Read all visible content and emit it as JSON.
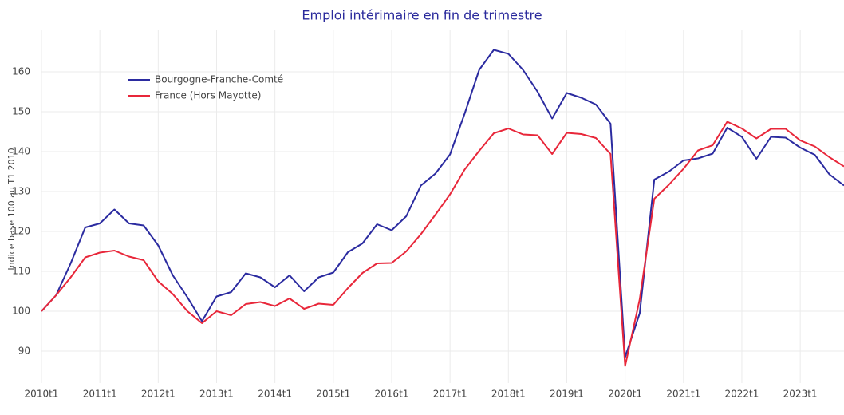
{
  "chart_data": {
    "type": "line",
    "title": "Emploi intérimaire en fin de trimestre",
    "ylabel": "Indice base 100 au T1 2010",
    "categories": [
      "2010t1",
      null,
      null,
      null,
      "2011t1",
      null,
      null,
      null,
      "2012t1",
      null,
      null,
      null,
      "2013t1",
      null,
      null,
      null,
      "2014t1",
      null,
      null,
      null,
      "2015t1",
      null,
      null,
      null,
      "2016t1",
      null,
      null,
      null,
      "2017t1",
      null,
      null,
      null,
      "2018t1",
      null,
      null,
      null,
      "2019t1",
      null,
      null,
      null,
      "2020t1",
      null,
      null,
      null,
      "2021t1",
      null,
      null,
      null,
      "2022t1",
      null,
      null,
      null,
      "2023t1",
      null,
      null,
      null
    ],
    "series": [
      {
        "name": "Bourgogne-Franche-Comté",
        "color": "#2b2ba0",
        "values": [
          100,
          104,
          112,
          121,
          122,
          125.5,
          122,
          121.5,
          116.5,
          109,
          103.5,
          97.5,
          103.7,
          104.8,
          109.5,
          108.5,
          106,
          109,
          105,
          108.5,
          109.7,
          114.8,
          117,
          121.8,
          120.3,
          123.8,
          131.5,
          134.5,
          139.3,
          149.5,
          160.5,
          165.5,
          164.5,
          160.5,
          155,
          148.3,
          154.7,
          153.5,
          151.8,
          147,
          88.5,
          99.5,
          133,
          135,
          137.8,
          138.3,
          139.5,
          146,
          143.7,
          138.2,
          143.7,
          143.5,
          141,
          139.2,
          134.3,
          131.5
        ]
      },
      {
        "name": "France (Hors Mayotte)",
        "color": "#e8273a",
        "values": [
          100,
          104,
          108.5,
          113.5,
          114.7,
          115.2,
          113.7,
          112.8,
          107.5,
          104.3,
          100,
          97,
          100,
          99,
          101.8,
          102.3,
          101.3,
          103.2,
          100.6,
          101.9,
          101.6,
          105.8,
          109.6,
          112,
          112.1,
          115,
          119.3,
          124.2,
          129.3,
          135.5,
          140.2,
          144.6,
          145.8,
          144.3,
          144.1,
          139.4,
          144.7,
          144.4,
          143.4,
          139.4,
          86.3,
          103,
          128.2,
          131.7,
          135.7,
          140.3,
          141.6,
          147.5,
          145.8,
          143.3,
          145.7,
          145.7,
          142.8,
          141.3,
          138.6,
          136.3
        ]
      }
    ],
    "ylim": [
      82,
      170.4
    ],
    "yticks": [
      90,
      100,
      110,
      120,
      130,
      140,
      150,
      160
    ],
    "grid": true,
    "legend": "upper left"
  }
}
